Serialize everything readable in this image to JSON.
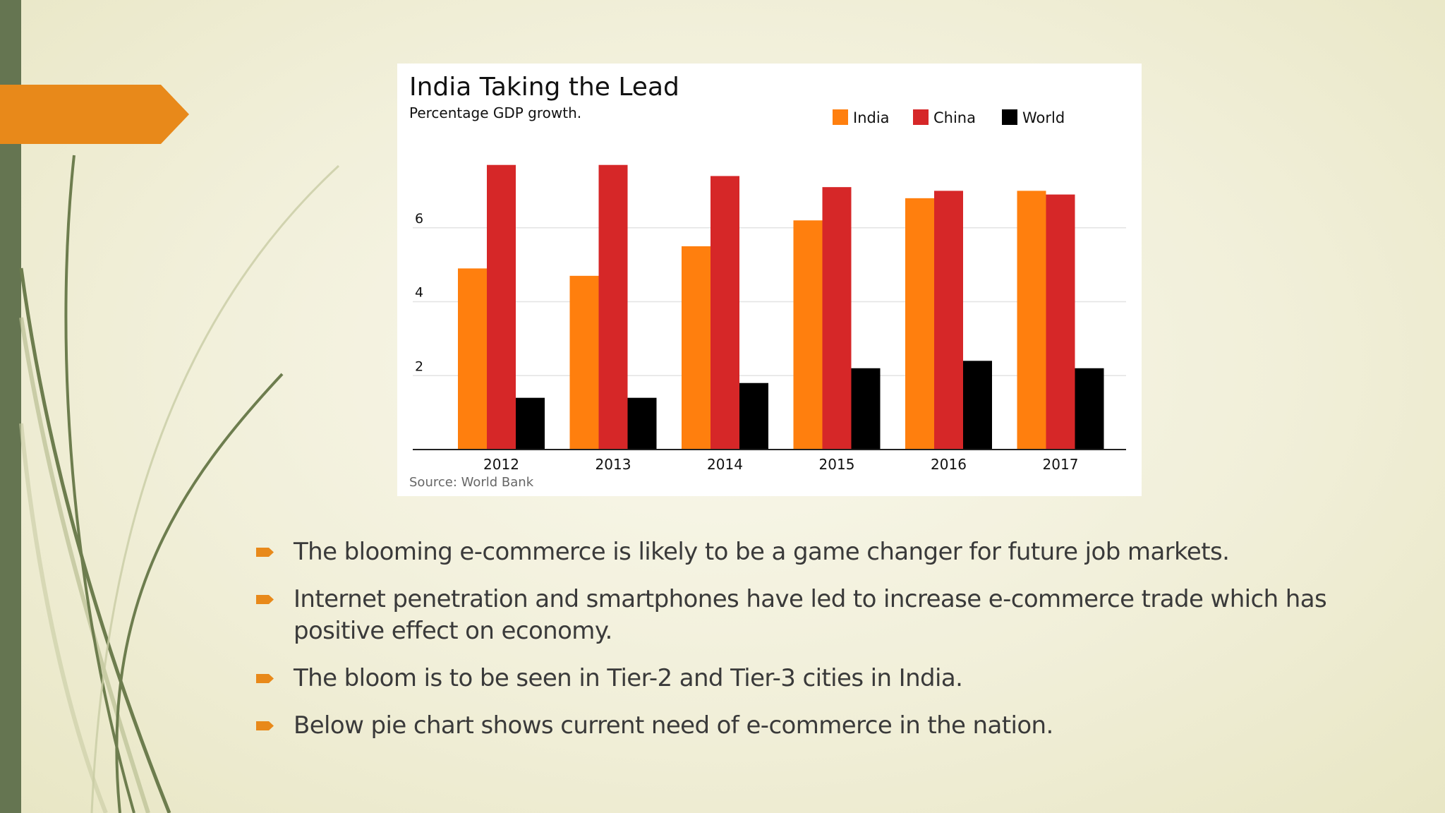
{
  "slide": {
    "accent_color": "#e8891a",
    "bar_color": "#657551",
    "bullets": [
      "The blooming e-commerce is likely to be a game changer for future job markets.",
      "Internet penetration and smartphones have led to increase e-commerce trade which has positive effect on economy.",
      "The bloom is to be seen in Tier-2 and Tier-3  cities in India.",
      "Below pie chart shows current need of e-commerce in the nation."
    ]
  },
  "chart_data": {
    "type": "bar",
    "title": "India Taking the Lead",
    "subtitle": "Percentage GDP growth.",
    "source": "Source: World Bank",
    "categories": [
      "2012",
      "2013",
      "2014",
      "2015",
      "2016",
      "2017"
    ],
    "series": [
      {
        "name": "India",
        "color": "#ff7f0e",
        "values": [
          4.9,
          4.7,
          5.5,
          6.2,
          6.8,
          7.0
        ]
      },
      {
        "name": "China",
        "color": "#d62728",
        "values": [
          7.7,
          7.7,
          7.4,
          7.1,
          7.0,
          6.9
        ]
      },
      {
        "name": "World",
        "color": "#000000",
        "values": [
          1.4,
          1.4,
          1.8,
          2.2,
          2.4,
          2.2
        ]
      }
    ],
    "yticks": [
      "2",
      "4",
      "6"
    ],
    "ylim": [
      0,
      8
    ],
    "grid": true,
    "legend": "top-right"
  }
}
